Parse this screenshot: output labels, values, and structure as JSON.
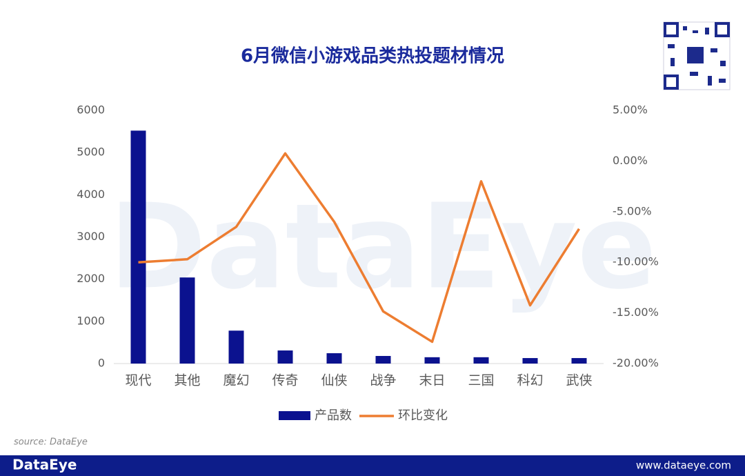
{
  "chart_data": {
    "type": "bar-line",
    "title": "6月微信小游戏品类热投题材情况",
    "categories": [
      "现代",
      "其他",
      "魔幻",
      "传奇",
      "仙侠",
      "战争",
      "末日",
      "三国",
      "科幻",
      "武侠"
    ],
    "series": [
      {
        "name": "产品数",
        "type": "bar",
        "color": "#0b128f",
        "values": [
          5520,
          2040,
          780,
          310,
          245,
          180,
          150,
          150,
          130,
          130
        ]
      },
      {
        "name": "环比变化",
        "type": "line",
        "axis": "y2",
        "color": "#ed7d31",
        "values": [
          -10.0,
          -9.7,
          -6.5,
          0.75,
          -6.0,
          -14.85,
          -17.85,
          -2.0,
          -14.25,
          -6.7
        ]
      }
    ],
    "ylim": [
      0,
      6000
    ],
    "yticks": [
      0,
      1000,
      2000,
      3000,
      4000,
      5000,
      6000
    ],
    "y2lim": [
      -20,
      5
    ],
    "y2ticks": [
      {
        "value": -20,
        "label": "-20.00%"
      },
      {
        "value": -15,
        "label": "-15.00%"
      },
      {
        "value": -10,
        "label": "-10.00%"
      },
      {
        "value": -5,
        "label": "-5.00%"
      },
      {
        "value": 0,
        "label": "0.00%"
      },
      {
        "value": 5,
        "label": "5.00%"
      }
    ],
    "legend": "bottom",
    "source": "source: DataEye",
    "watermark": "DataEye",
    "footer_logo": "DataEye",
    "footer_url": "www.dataeye.com"
  }
}
